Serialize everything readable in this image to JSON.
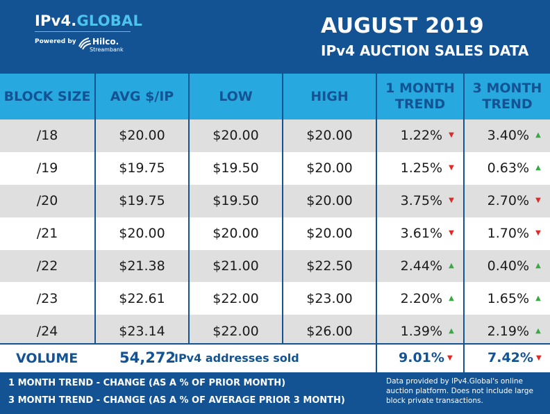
{
  "header": {
    "logo_main": "IPv4.",
    "logo_accent": "GLOBAL",
    "powered_by": "Powered by",
    "partner_name": "Hilco.",
    "partner_sub": "Streambank",
    "title_line1": "AUGUST 2019",
    "title_line2": "IPv4 AUCTION SALES DATA"
  },
  "table": {
    "columns": [
      "BLOCK SIZE",
      "AVG $/IP",
      "LOW",
      "HIGH",
      "1 MONTH TREND",
      "3 MONTH TREND"
    ],
    "rows": [
      {
        "block": "/18",
        "avg": "$20.00",
        "low": "$20.00",
        "high": "$20.00",
        "trend1": "1.22%",
        "trend1_dir": "down",
        "trend3": "3.40%",
        "trend3_dir": "up"
      },
      {
        "block": "/19",
        "avg": "$19.75",
        "low": "$19.50",
        "high": "$20.00",
        "trend1": "1.25%",
        "trend1_dir": "down",
        "trend3": "0.63%",
        "trend3_dir": "up"
      },
      {
        "block": "/20",
        "avg": "$19.75",
        "low": "$19.50",
        "high": "$20.00",
        "trend1": "3.75%",
        "trend1_dir": "down",
        "trend3": "2.70%",
        "trend3_dir": "down"
      },
      {
        "block": "/21",
        "avg": "$20.00",
        "low": "$20.00",
        "high": "$20.00",
        "trend1": "3.61%",
        "trend1_dir": "down",
        "trend3": "1.70%",
        "trend3_dir": "down"
      },
      {
        "block": "/22",
        "avg": "$21.38",
        "low": "$21.00",
        "high": "$22.50",
        "trend1": "2.44%",
        "trend1_dir": "up",
        "trend3": "0.40%",
        "trend3_dir": "up"
      },
      {
        "block": "/23",
        "avg": "$22.61",
        "low": "$22.00",
        "high": "$23.00",
        "trend1": "2.20%",
        "trend1_dir": "up",
        "trend3": "1.65%",
        "trend3_dir": "up"
      },
      {
        "block": "/24",
        "avg": "$23.14",
        "low": "$22.00",
        "high": "$26.00",
        "trend1": "1.39%",
        "trend1_dir": "up",
        "trend3": "2.19%",
        "trend3_dir": "up"
      }
    ]
  },
  "volume": {
    "label": "VOLUME",
    "count": "54,272",
    "text": "IPv4 addresses sold",
    "trend1": "9.01%",
    "trend1_dir": "down",
    "trend3": "7.42%",
    "trend3_dir": "down"
  },
  "footer": {
    "line1": "1 MONTH TREND - CHANGE (AS A % OF PRIOR MONTH)",
    "line2": "3 MONTH TREND - CHANGE (AS A % OF AVERAGE PRIOR 3 MONTH)",
    "note": "Data provided by IPv4.Global's online auction platform. Does not include large block private transactions."
  },
  "colors": {
    "brand_navy": "#135394",
    "header_cyan": "#27a8df",
    "logo_accent": "#4ec3ee",
    "row_shade": "#dfdfe0",
    "trend_up": "#3aa844",
    "trend_down": "#e02a28"
  },
  "icons": {
    "up": "triangle-up-icon",
    "down": "triangle-down-icon",
    "partner": "hilco-logo-icon"
  }
}
